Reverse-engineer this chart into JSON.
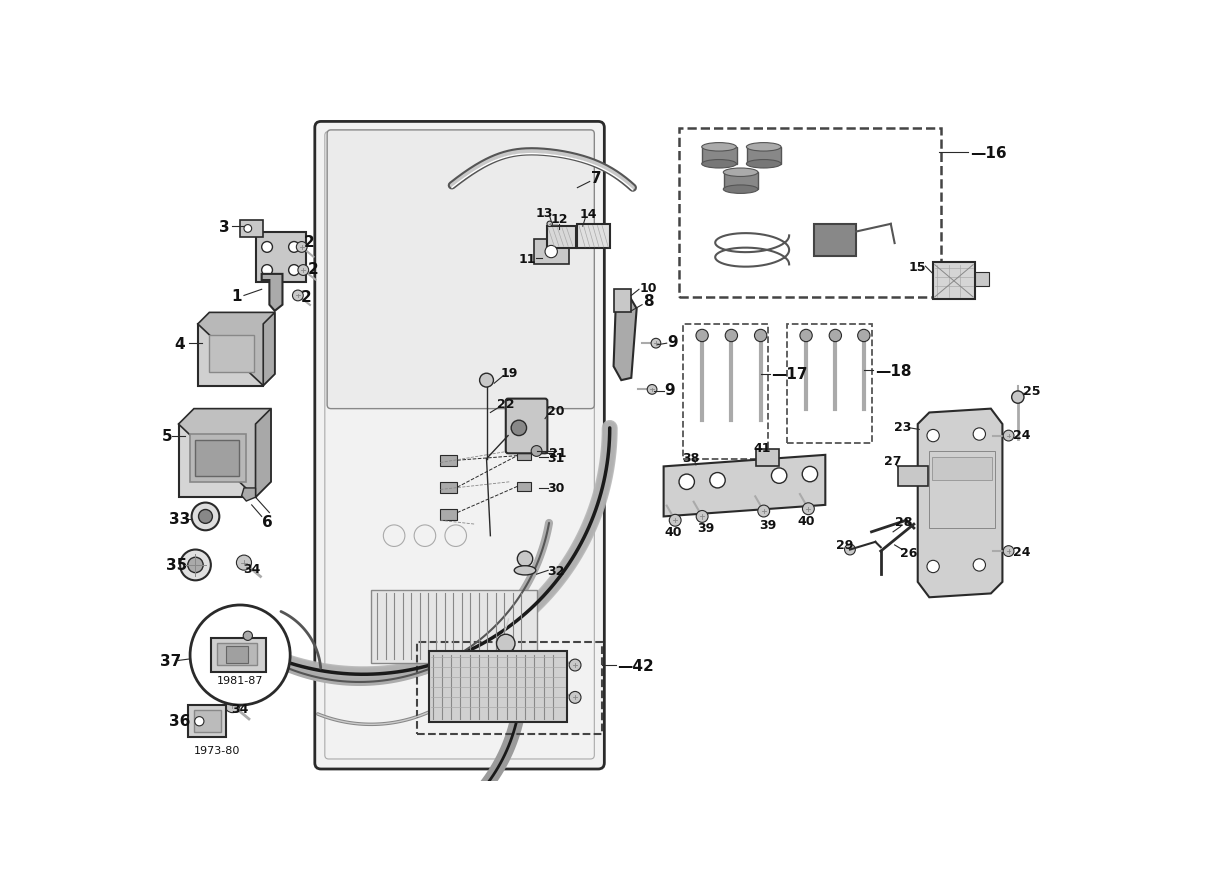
{
  "bg_color": "#ffffff",
  "lc": "#2a2a2a",
  "gray1": "#c8c8c8",
  "gray2": "#aaaaaa",
  "gray3": "#888888",
  "gray4": "#666666",
  "gray5": "#444444",
  "light_gray": "#e8e8e8",
  "figw": 12.19,
  "figh": 8.79,
  "dpi": 100,
  "xlim": [
    0,
    1219
  ],
  "ylim": [
    0,
    879
  ]
}
